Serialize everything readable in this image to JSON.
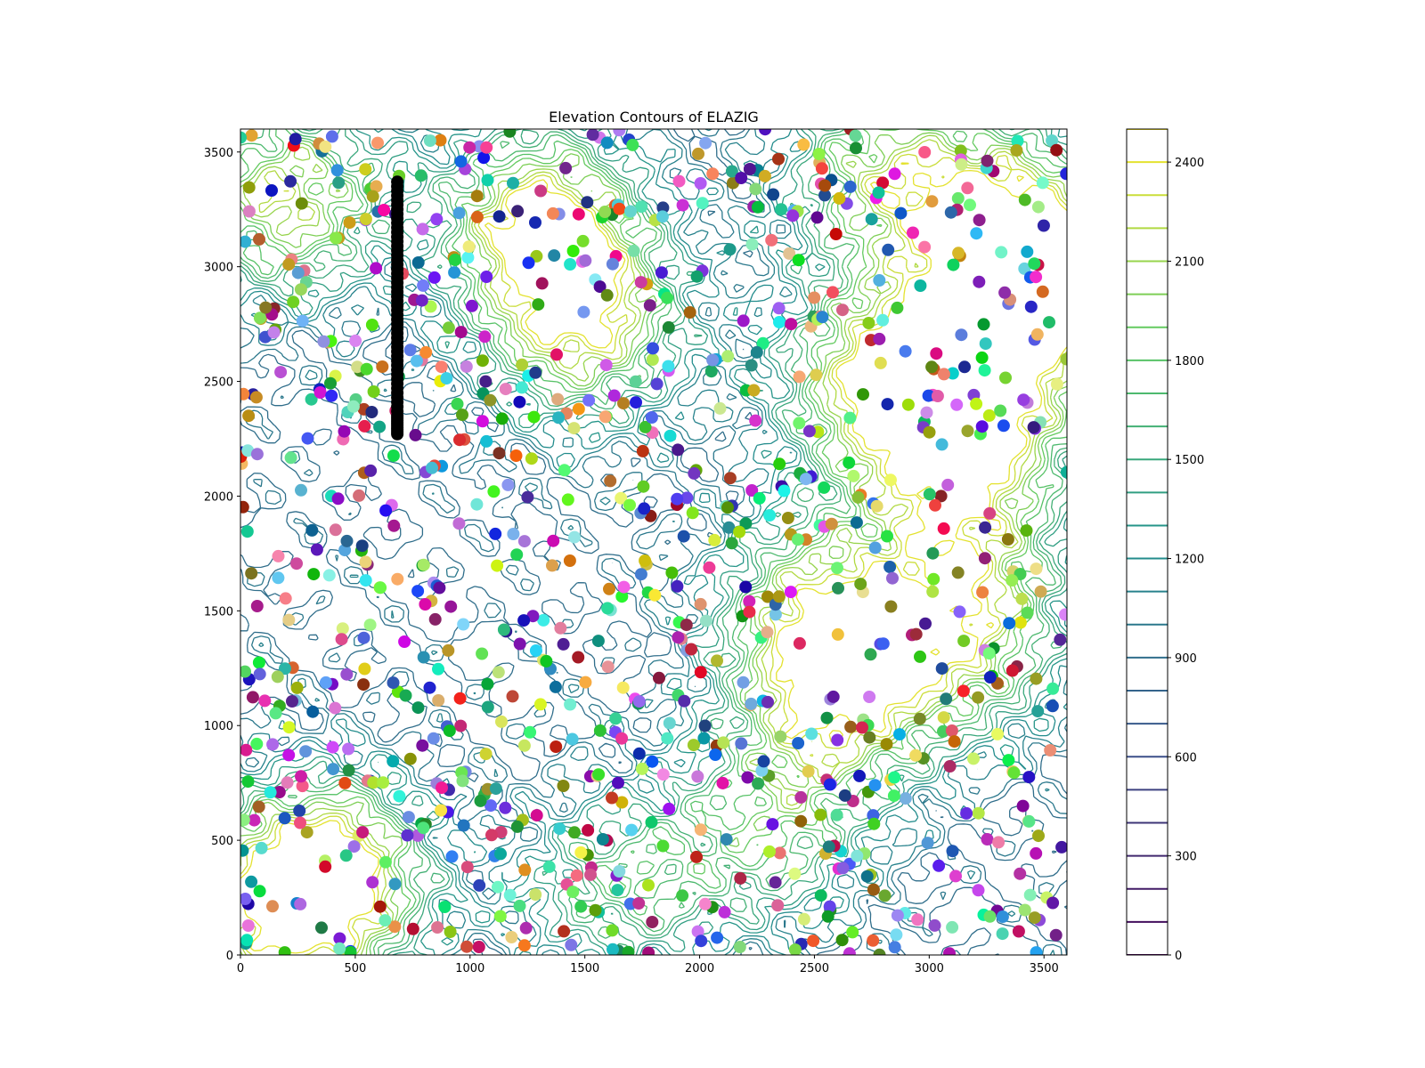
{
  "chart_data": {
    "type": "contour",
    "title": "Elevation Contours of ELAZIG",
    "xlabel": "",
    "ylabel": "",
    "xlim": [
      0,
      3600
    ],
    "ylim": [
      0,
      3600
    ],
    "x_ticks": [
      0,
      500,
      1000,
      1500,
      2000,
      2500,
      3000,
      3500
    ],
    "y_ticks": [
      0,
      500,
      1000,
      1500,
      2000,
      2500,
      3000,
      3500
    ],
    "colorbar": {
      "range": [
        0,
        2500
      ],
      "levels_step": 100,
      "tick_values": [
        0,
        300,
        600,
        900,
        1200,
        1500,
        1800,
        2100,
        2400
      ],
      "colormap": "viridis"
    },
    "terrain": {
      "contour_levels": [
        1200,
        1400,
        1600,
        1800,
        2000,
        2200
      ],
      "peaks": [
        {
          "x": 200,
          "y": 3300,
          "elev": 2200
        },
        {
          "x": 1300,
          "y": 3200,
          "elev": 2350
        },
        {
          "x": 1500,
          "y": 2750,
          "elev": 2200
        },
        {
          "x": 2800,
          "y": 3400,
          "elev": 2000
        },
        {
          "x": 2800,
          "y": 2500,
          "elev": 2350
        },
        {
          "x": 3350,
          "y": 3200,
          "elev": 2100
        },
        {
          "x": 3150,
          "y": 2000,
          "elev": 1900
        },
        {
          "x": 3150,
          "y": 1400,
          "elev": 2100
        },
        {
          "x": 2500,
          "y": 1500,
          "elev": 2000
        },
        {
          "x": 2600,
          "y": 1100,
          "elev": 2000
        },
        {
          "x": 400,
          "y": 350,
          "elev": 2300
        },
        {
          "x": 150,
          "y": 200,
          "elev": 2000
        },
        {
          "x": 1650,
          "y": 300,
          "elev": 1700
        },
        {
          "x": 2300,
          "y": 550,
          "elev": 1700
        },
        {
          "x": 3500,
          "y": 2900,
          "elev": 1900
        },
        {
          "x": 3250,
          "y": 2500,
          "elev": 2000
        }
      ]
    },
    "series": [
      {
        "type": "scatter",
        "point_count": 1000,
        "seed": 1234,
        "color": "random"
      },
      {
        "type": "scatter",
        "color": "#000000",
        "x": [
          683,
          683,
          683,
          683,
          683,
          683,
          683,
          683,
          683,
          683,
          683,
          683,
          683,
          683,
          683,
          683,
          683,
          683,
          683,
          683,
          683,
          683,
          683,
          683,
          683,
          683,
          683,
          683,
          683,
          683,
          683,
          683,
          683,
          683,
          683,
          683,
          683,
          683,
          683,
          683,
          683,
          683,
          683,
          683,
          683,
          683,
          683,
          683,
          683,
          683,
          683,
          683,
          683,
          683,
          683,
          683,
          683,
          683,
          683,
          683
        ],
        "y": [
          2270,
          2290,
          2310,
          2330,
          2350,
          2370,
          2390,
          2410,
          2430,
          2450,
          2470,
          2490,
          2510,
          2530,
          2550,
          2570,
          2590,
          2610,
          2630,
          2650,
          2670,
          2690,
          2710,
          2730,
          2750,
          2770,
          2790,
          2810,
          2830,
          2850,
          2870,
          2890,
          2910,
          2930,
          2950,
          2970,
          2990,
          3010,
          3030,
          3050,
          3070,
          3090,
          3110,
          3130,
          3150,
          3170,
          3190,
          3210,
          3230,
          3250,
          3270,
          3290,
          3310,
          3330,
          3350,
          3370,
          2280,
          2300,
          2320,
          2340
        ]
      }
    ]
  }
}
